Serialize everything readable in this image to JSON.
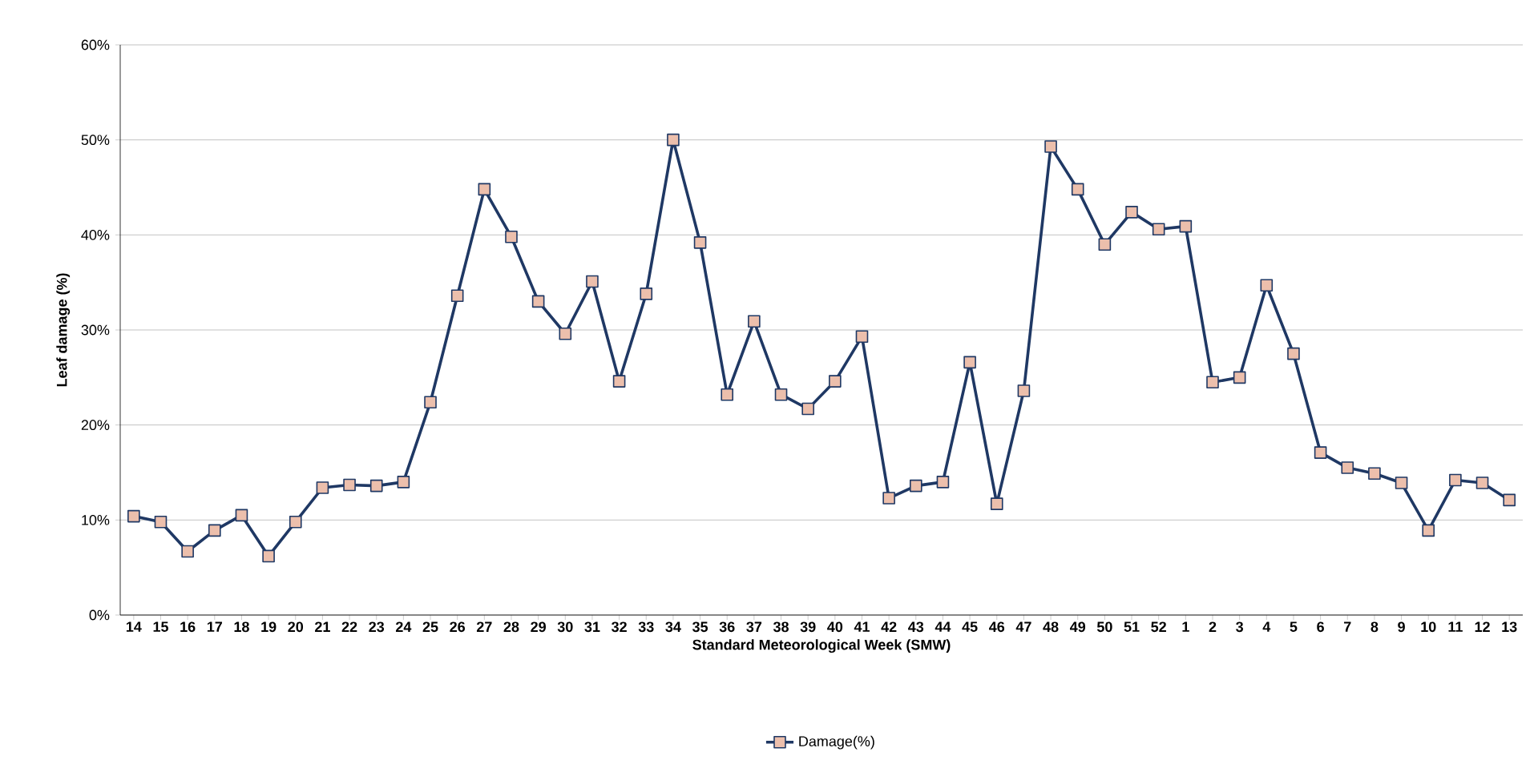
{
  "chart_data": {
    "type": "line",
    "xlabel": "Standard Meteorological Week (SMW)",
    "ylabel": "Leaf damage (%)",
    "categories": [
      "14",
      "15",
      "16",
      "17",
      "18",
      "19",
      "20",
      "21",
      "22",
      "23",
      "24",
      "25",
      "26",
      "27",
      "28",
      "29",
      "30",
      "31",
      "32",
      "33",
      "34",
      "35",
      "36",
      "37",
      "38",
      "39",
      "40",
      "41",
      "42",
      "43",
      "44",
      "45",
      "46",
      "47",
      "48",
      "49",
      "50",
      "51",
      "52",
      "1",
      "2",
      "3",
      "4",
      "5",
      "6",
      "7",
      "8",
      "9",
      "10",
      "11",
      "12",
      "13"
    ],
    "series": [
      {
        "name": "Damage(%)",
        "color": "#1f3864",
        "values": [
          10.4,
          9.8,
          6.7,
          8.9,
          10.5,
          6.2,
          9.8,
          13.4,
          13.7,
          13.6,
          14.0,
          22.4,
          33.6,
          44.8,
          39.8,
          33.0,
          29.6,
          35.1,
          24.6,
          33.8,
          50.0,
          39.2,
          23.2,
          30.9,
          23.2,
          21.7,
          24.6,
          29.3,
          12.3,
          13.6,
          14.0,
          26.6,
          11.7,
          23.6,
          49.3,
          44.8,
          39.0,
          42.4,
          40.6,
          40.9,
          24.5,
          25.0,
          34.7,
          27.5,
          17.1,
          15.5,
          14.9,
          13.9,
          8.9,
          14.2,
          13.9,
          12.1
        ]
      }
    ],
    "ylim": [
      0,
      60
    ],
    "yticks": [
      {
        "value": 0,
        "label": "0%"
      },
      {
        "value": 10,
        "label": "10%"
      },
      {
        "value": 20,
        "label": "20%"
      },
      {
        "value": 30,
        "label": "30%"
      },
      {
        "value": 40,
        "label": "40%"
      },
      {
        "value": 50,
        "label": "50%"
      },
      {
        "value": 60,
        "label": "60%"
      }
    ],
    "grid": "y",
    "legend": "bottom",
    "marker": "square"
  }
}
